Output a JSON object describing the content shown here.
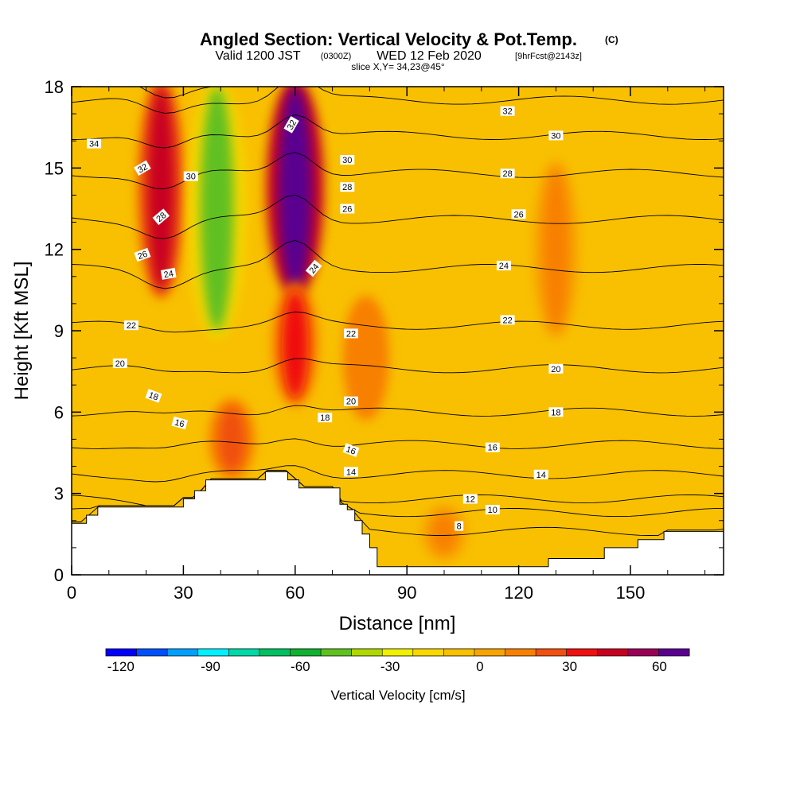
{
  "title": {
    "main": "Angled Section: Vertical Velocity & Pot.Temp.",
    "units": "(C)",
    "valid_prefix": "Valid 1200 JST",
    "valid_utc": "(0300Z)",
    "valid_date": "WED 12 Feb 2020",
    "forecast": "[9hrFcst@2143z]",
    "slice": "slice X,Y= 34,23@45°"
  },
  "chart_data": {
    "type": "heatmap",
    "xlabel": "Distance [nm]",
    "ylabel": "Height [Kft MSL]",
    "xlim": [
      0,
      175
    ],
    "ylim": [
      0,
      18
    ],
    "x_ticks": [
      0,
      30,
      60,
      90,
      120,
      150
    ],
    "y_ticks": [
      0,
      3,
      6,
      9,
      12,
      15,
      18
    ],
    "terrain_heights_kft": [
      [
        0,
        1.9
      ],
      [
        4,
        1.9
      ],
      [
        4,
        2.2
      ],
      [
        7,
        2.2
      ],
      [
        7,
        2.5
      ],
      [
        30,
        2.5
      ],
      [
        30,
        2.8
      ],
      [
        33,
        2.8
      ],
      [
        33,
        3.1
      ],
      [
        36,
        3.1
      ],
      [
        36,
        3.5
      ],
      [
        52,
        3.5
      ],
      [
        52,
        3.8
      ],
      [
        58,
        3.8
      ],
      [
        58,
        3.5
      ],
      [
        61,
        3.5
      ],
      [
        61,
        3.2
      ],
      [
        72,
        3.2
      ],
      [
        72,
        2.6
      ],
      [
        74,
        2.6
      ],
      [
        74,
        2.4
      ],
      [
        76,
        2.4
      ],
      [
        76,
        2.0
      ],
      [
        78,
        2.0
      ],
      [
        78,
        1.5
      ],
      [
        80,
        1.5
      ],
      [
        80,
        1.0
      ],
      [
        82,
        1.0
      ],
      [
        82,
        0.3
      ],
      [
        128,
        0.3
      ],
      [
        128,
        0.6
      ],
      [
        143,
        0.6
      ],
      [
        143,
        1.0
      ],
      [
        152,
        1.0
      ],
      [
        152,
        1.3
      ],
      [
        159,
        1.3
      ],
      [
        159,
        1.6
      ],
      [
        175,
        1.6
      ]
    ],
    "vertical_velocity_features": [
      {
        "x_center": 24,
        "y_from": 10.5,
        "y_to": 18,
        "value": 35
      },
      {
        "x_center": 39,
        "y_from": 9,
        "y_to": 18,
        "value": -50
      },
      {
        "x_center": 60,
        "y_from": 10.5,
        "y_to": 18,
        "value": 65
      },
      {
        "x_center": 60,
        "y_from": 6.5,
        "y_to": 10.5,
        "value": 25
      },
      {
        "x_center": 43,
        "y_from": 3.8,
        "y_to": 6.2,
        "value": 15
      },
      {
        "x_center": 79,
        "y_from": 6,
        "y_to": 10,
        "value": 12
      },
      {
        "x_center": 130,
        "y_from": 9,
        "y_to": 15,
        "value": 6
      },
      {
        "x_center": 100,
        "y_from": 0.8,
        "y_to": 2.3,
        "value": 8
      }
    ],
    "theta_contours": [
      {
        "value": 8,
        "y": 1.6
      },
      {
        "value": 10,
        "y": 2.3
      },
      {
        "value": 12,
        "y": 2.8
      },
      {
        "value": 14,
        "y": 3.7
      },
      {
        "value": 16,
        "y": 4.8
      },
      {
        "value": 18,
        "y": 6.0
      },
      {
        "value": 20,
        "y": 7.6
      },
      {
        "value": 22,
        "y": 9.2
      },
      {
        "value": 24,
        "y": 11.3
      },
      {
        "value": 26,
        "y": 13.1
      },
      {
        "value": 28,
        "y": 14.8
      },
      {
        "value": 30,
        "y": 16.2
      },
      {
        "value": 32,
        "y": 17.5
      },
      {
        "value": 34,
        "y": 18.2
      }
    ],
    "contour_labels": [
      {
        "text": "34",
        "x": 6,
        "y": 15.9,
        "rot": 0
      },
      {
        "text": "32",
        "x": 19,
        "y": 15.0,
        "rot": -30
      },
      {
        "text": "30",
        "x": 32,
        "y": 14.7,
        "rot": 0
      },
      {
        "text": "28",
        "x": 24,
        "y": 13.2,
        "rot": -40
      },
      {
        "text": "26",
        "x": 19,
        "y": 11.8,
        "rot": -20
      },
      {
        "text": "24",
        "x": 26,
        "y": 11.1,
        "rot": -10
      },
      {
        "text": "22",
        "x": 16,
        "y": 9.2,
        "rot": 0
      },
      {
        "text": "20",
        "x": 13,
        "y": 7.8,
        "rot": 0
      },
      {
        "text": "18",
        "x": 22,
        "y": 6.6,
        "rot": 20
      },
      {
        "text": "16",
        "x": 29,
        "y": 5.6,
        "rot": 15
      },
      {
        "text": "32",
        "x": 59,
        "y": 16.6,
        "rot": -60
      },
      {
        "text": "24",
        "x": 65,
        "y": 11.3,
        "rot": -50
      },
      {
        "text": "30",
        "x": 74,
        "y": 15.3,
        "rot": 0
      },
      {
        "text": "28",
        "x": 74,
        "y": 14.3,
        "rot": 0
      },
      {
        "text": "26",
        "x": 74,
        "y": 13.5,
        "rot": 0
      },
      {
        "text": "22",
        "x": 75,
        "y": 8.9,
        "rot": 0
      },
      {
        "text": "20",
        "x": 75,
        "y": 6.4,
        "rot": 0
      },
      {
        "text": "18",
        "x": 68,
        "y": 5.8,
        "rot": 0
      },
      {
        "text": "16",
        "x": 75,
        "y": 4.6,
        "rot": 20
      },
      {
        "text": "14",
        "x": 75,
        "y": 3.8,
        "rot": 0
      },
      {
        "text": "32",
        "x": 117,
        "y": 17.1,
        "rot": 0
      },
      {
        "text": "30",
        "x": 130,
        "y": 16.2,
        "rot": 0
      },
      {
        "text": "28",
        "x": 117,
        "y": 14.8,
        "rot": 0
      },
      {
        "text": "26",
        "x": 120,
        "y": 13.3,
        "rot": 0
      },
      {
        "text": "24",
        "x": 116,
        "y": 11.4,
        "rot": 0
      },
      {
        "text": "22",
        "x": 117,
        "y": 9.4,
        "rot": 0
      },
      {
        "text": "20",
        "x": 130,
        "y": 7.6,
        "rot": 0
      },
      {
        "text": "18",
        "x": 130,
        "y": 6.0,
        "rot": 0
      },
      {
        "text": "16",
        "x": 113,
        "y": 4.7,
        "rot": 0
      },
      {
        "text": "14",
        "x": 126,
        "y": 3.7,
        "rot": 0
      },
      {
        "text": "12",
        "x": 107,
        "y": 2.8,
        "rot": 0
      },
      {
        "text": "10",
        "x": 113,
        "y": 2.4,
        "rot": 0
      },
      {
        "text": "8",
        "x": 104,
        "y": 1.8,
        "rot": 0
      }
    ],
    "colorbar": {
      "title": "Vertical Velocity [cm/s]",
      "min": -125,
      "max": 70,
      "step": 10,
      "labels": [
        "-120",
        "-90",
        "-60",
        "-30",
        "0",
        "30",
        "60"
      ],
      "label_values": [
        -120,
        -90,
        -60,
        -30,
        0,
        30,
        60
      ],
      "colors": [
        "#0000ff",
        "#0050ff",
        "#00a0ff",
        "#00f0ff",
        "#00d8a8",
        "#00c060",
        "#10b030",
        "#60c020",
        "#b0d800",
        "#f0f000",
        "#f8d800",
        "#f8c000",
        "#f8a400",
        "#f88000",
        "#f05010",
        "#f01010",
        "#c80020",
        "#9a0058",
        "#5a0090"
      ]
    }
  }
}
